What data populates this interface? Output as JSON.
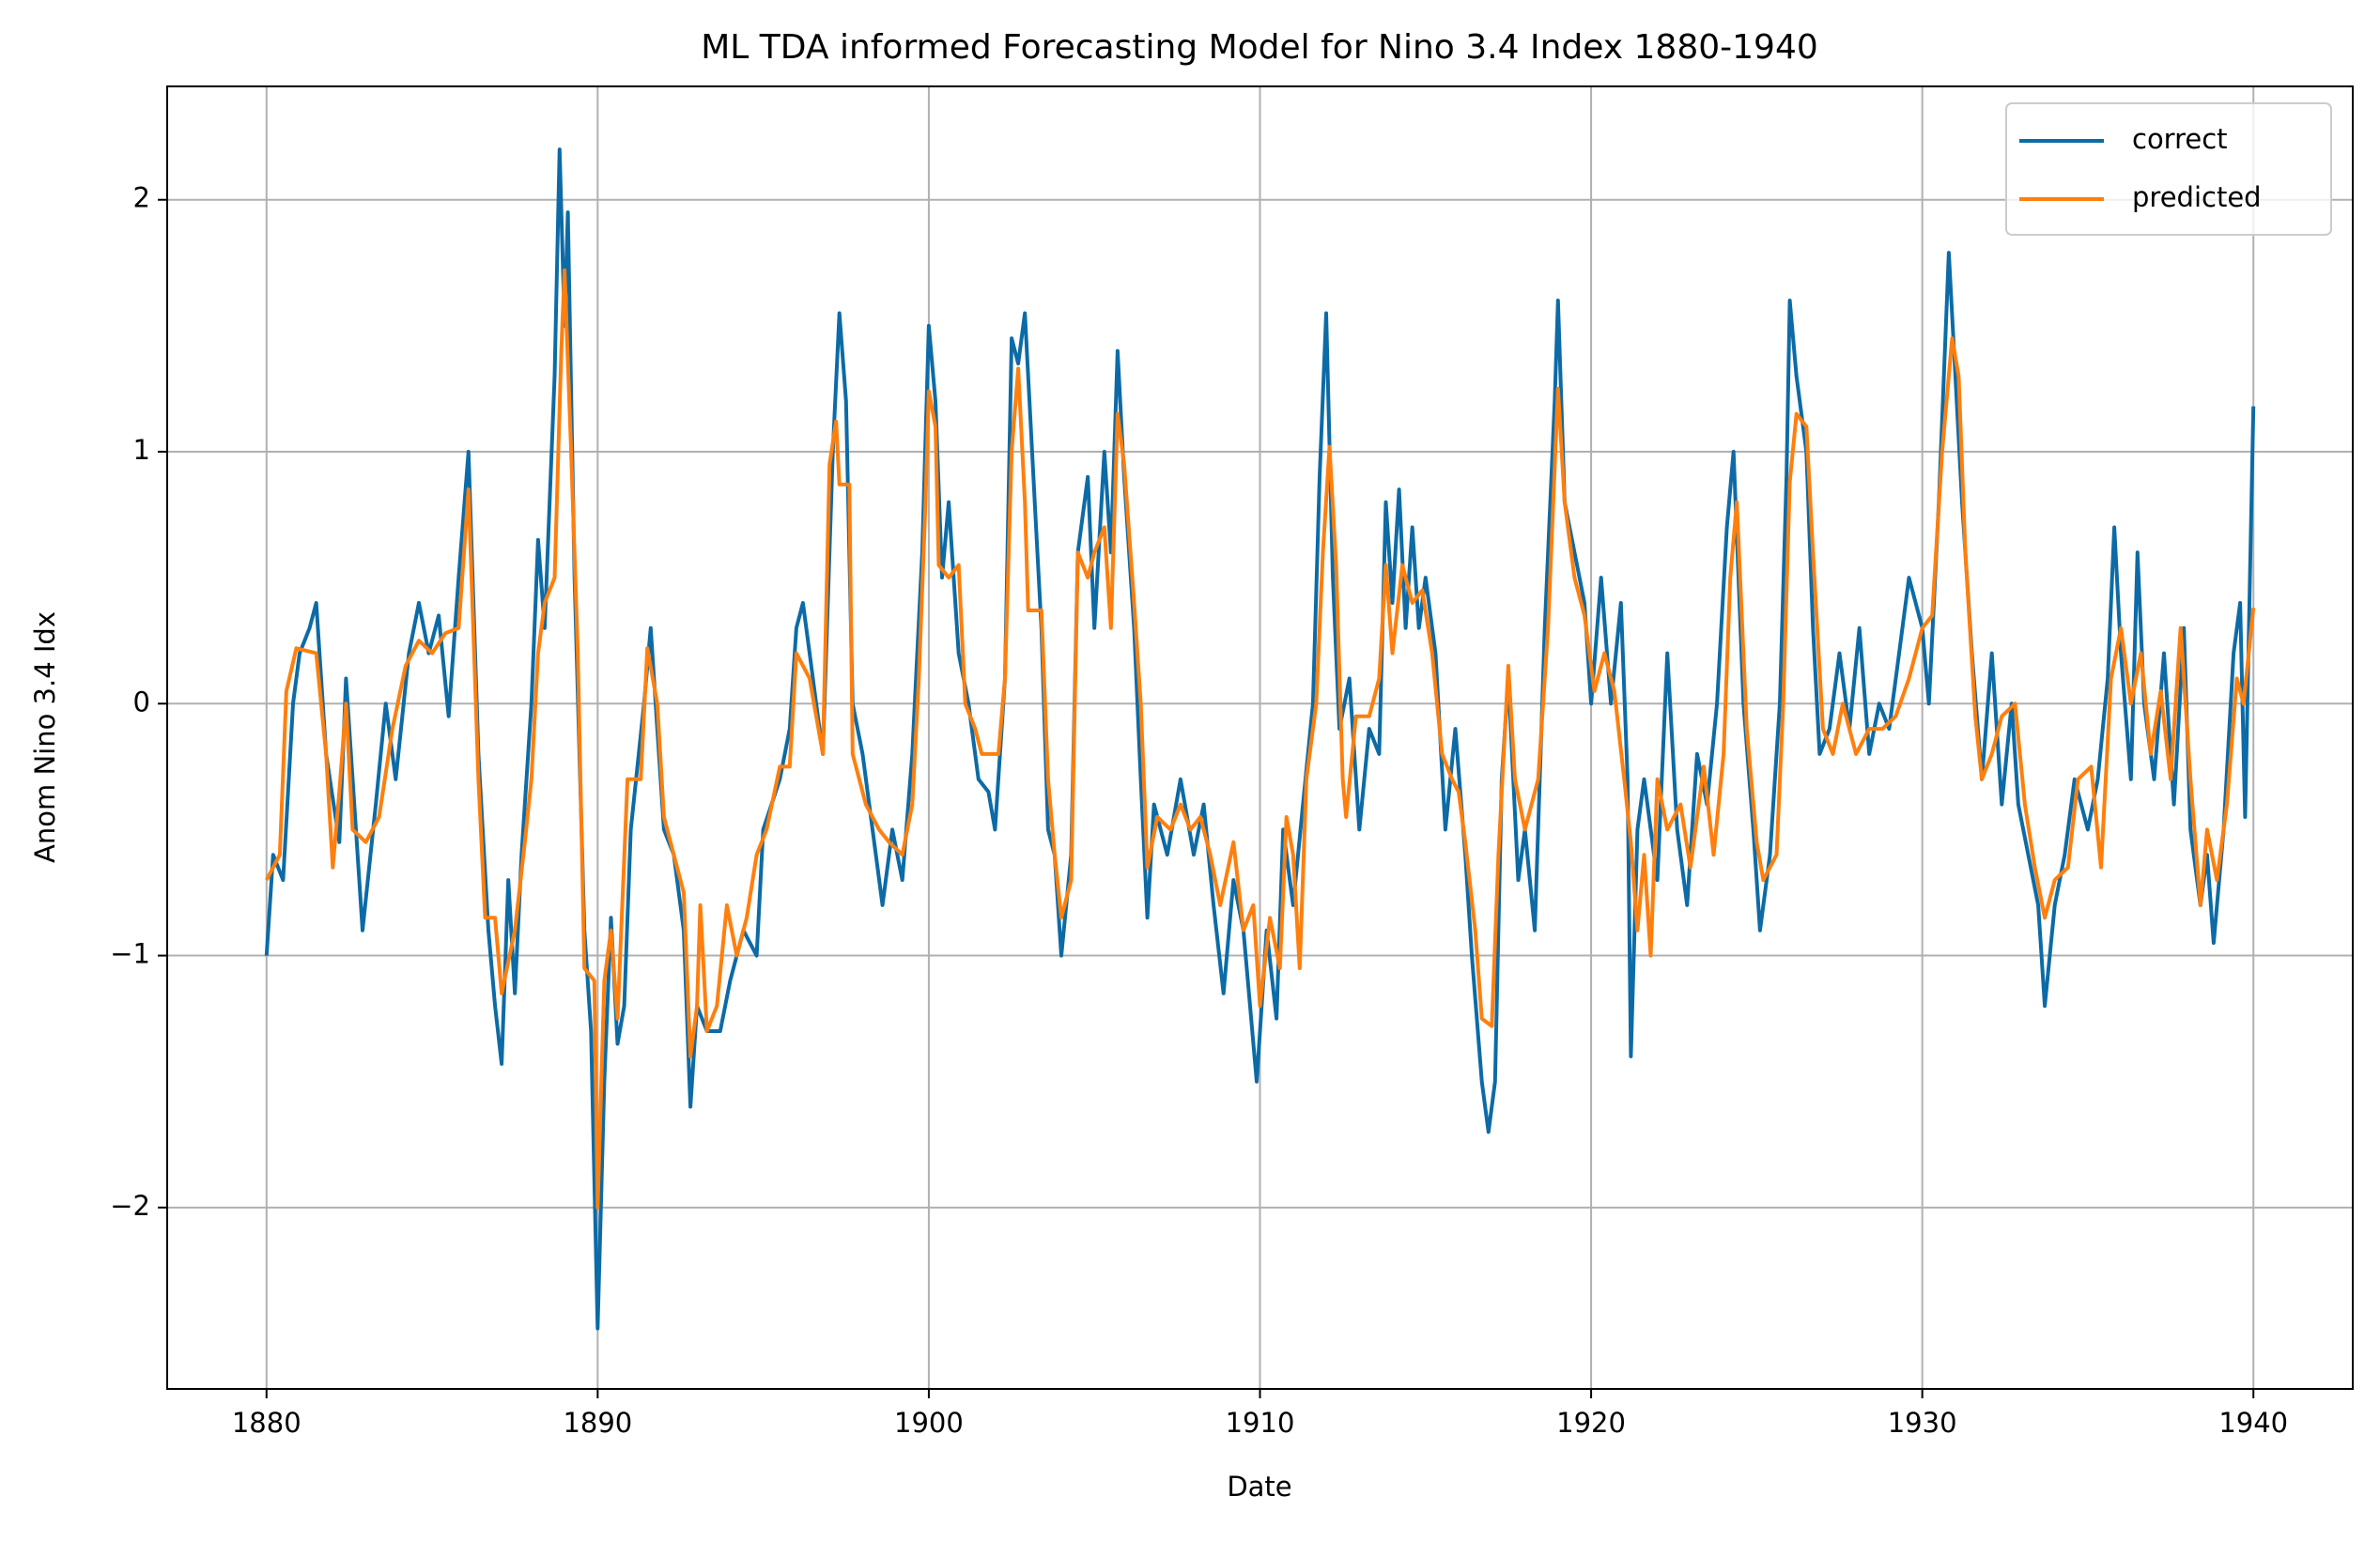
{
  "chart_data": {
    "type": "line",
    "title": "ML TDA informed Forecasting Model for Nino 3.4 Index 1880-1940",
    "x_label": "Date",
    "y_label": "Anom Nino 3.4 Idx",
    "xlim": [
      1877,
      1943
    ],
    "ylim": [
      -2.72,
      2.45
    ],
    "xticks": [
      1880,
      1890,
      1900,
      1910,
      1920,
      1930,
      1940
    ],
    "yticks": [
      {
        "value": -2,
        "label": "−2"
      },
      {
        "value": -1,
        "label": "−1"
      },
      0,
      1,
      2
    ],
    "grid": true,
    "legend": "upper right",
    "series": [
      {
        "name": "correct",
        "color": "#0c6ba6",
        "x": [
          1880,
          1880.2,
          1880.5,
          1880.8,
          1881,
          1881.3,
          1881.5,
          1881.8,
          1882.2,
          1882.4,
          1882.7,
          1882.9,
          1883.3,
          1883.6,
          1883.9,
          1884.3,
          1884.6,
          1884.9,
          1885.2,
          1885.5,
          1885.8,
          1886.1,
          1886.4,
          1886.7,
          1886.9,
          1887.1,
          1887.3,
          1887.5,
          1887.7,
          1888,
          1888.2,
          1888.4,
          1888.7,
          1888.85,
          1889,
          1889.1,
          1889.3,
          1889.6,
          1889.8,
          1890,
          1890.2,
          1890.4,
          1890.6,
          1890.8,
          1891,
          1891.4,
          1891.6,
          1891.8,
          1892,
          1892.3,
          1892.6,
          1892.8,
          1893,
          1893.3,
          1893.7,
          1894,
          1894.4,
          1894.8,
          1895,
          1895.5,
          1895.8,
          1896,
          1896.2,
          1896.4,
          1896.6,
          1896.8,
          1897.1,
          1897.3,
          1897.5,
          1897.7,
          1898,
          1898.3,
          1898.6,
          1898.9,
          1899.2,
          1899.5,
          1899.8,
          1900,
          1900.2,
          1900.4,
          1900.6,
          1900.9,
          1901.2,
          1901.5,
          1901.8,
          1902,
          1902.3,
          1902.5,
          1902.7,
          1902.9,
          1903.2,
          1903.4,
          1903.6,
          1903.8,
          1904,
          1904.3,
          1904.5,
          1904.8,
          1905,
          1905.3,
          1905.5,
          1905.7,
          1905.9,
          1906.2,
          1906.4,
          1906.6,
          1906.8,
          1907.2,
          1907.6,
          1908,
          1908.3,
          1908.6,
          1908.9,
          1909.2,
          1909.5,
          1909.9,
          1910.2,
          1910.5,
          1910.7,
          1911,
          1911.3,
          1911.6,
          1911.8,
          1912,
          1912.2,
          1912.4,
          1912.7,
          1913,
          1913.3,
          1913.6,
          1913.8,
          1914,
          1914.2,
          1914.4,
          1914.6,
          1914.8,
          1915,
          1915.3,
          1915.6,
          1915.9,
          1916.2,
          1916.4,
          1916.7,
          1916.9,
          1917.1,
          1917.3,
          1917.5,
          1917.8,
          1918,
          1918.3,
          1918.6,
          1918.9,
          1919,
          1919.2,
          1919.5,
          1919.8,
          1920,
          1920.3,
          1920.6,
          1920.9,
          1921.1,
          1921.2,
          1921.4,
          1921.6,
          1922,
          1922.3,
          1922.6,
          1922.9,
          1923.2,
          1923.5,
          1923.8,
          1924.1,
          1924.3,
          1924.6,
          1924.9,
          1925.1,
          1925.4,
          1925.7,
          1925.9,
          1926,
          1926.2,
          1926.5,
          1926.7,
          1926.9,
          1927.2,
          1927.5,
          1927.8,
          1928.1,
          1928.4,
          1928.7,
          1929,
          1929.3,
          1929.6,
          1930,
          1930.2,
          1930.5,
          1930.8,
          1931,
          1931.2,
          1931.5,
          1931.8,
          1932.1,
          1932.4,
          1932.7,
          1932.9,
          1933.2,
          1933.5,
          1933.7,
          1934,
          1934.3,
          1934.6,
          1935,
          1935.3,
          1935.6,
          1935.8,
          1936,
          1936.3,
          1936.5,
          1936.7,
          1937,
          1937.3,
          1937.6,
          1937.9,
          1938.1,
          1938.4,
          1938.6,
          1938.8,
          1939.1,
          1939.4,
          1939.6,
          1939.75,
          1940
        ],
        "values": [
          -1.0,
          -0.6,
          -0.7,
          0.0,
          0.2,
          0.3,
          0.4,
          -0.2,
          -0.55,
          0.1,
          -0.5,
          -0.9,
          -0.4,
          0.0,
          -0.3,
          0.2,
          0.4,
          0.2,
          0.35,
          -0.05,
          0.5,
          1.0,
          -0.2,
          -0.9,
          -1.2,
          -1.43,
          -0.7,
          -1.15,
          -0.6,
          0.0,
          0.65,
          0.3,
          1.3,
          2.2,
          1.5,
          1.95,
          0.5,
          -0.9,
          -1.3,
          -2.48,
          -1.5,
          -0.85,
          -1.35,
          -1.2,
          -0.5,
          0.0,
          0.3,
          -0.1,
          -0.5,
          -0.6,
          -0.9,
          -1.6,
          -1.2,
          -1.3,
          -1.3,
          -1.1,
          -0.9,
          -1.0,
          -0.5,
          -0.3,
          -0.1,
          0.3,
          0.4,
          0.2,
          0.0,
          -0.2,
          1.0,
          1.55,
          1.2,
          0.0,
          -0.2,
          -0.5,
          -0.8,
          -0.5,
          -0.7,
          -0.2,
          0.6,
          1.5,
          1.2,
          0.5,
          0.8,
          0.2,
          0.0,
          -0.3,
          -0.35,
          -0.5,
          0.1,
          1.45,
          1.35,
          1.55,
          0.8,
          0.3,
          -0.5,
          -0.6,
          -1.0,
          -0.6,
          0.6,
          0.9,
          0.3,
          1.0,
          0.6,
          1.4,
          0.9,
          0.3,
          -0.3,
          -0.85,
          -0.4,
          -0.6,
          -0.3,
          -0.6,
          -0.4,
          -0.8,
          -1.15,
          -0.7,
          -0.9,
          -1.5,
          -0.9,
          -1.25,
          -0.5,
          -0.8,
          -0.4,
          0.0,
          0.9,
          1.55,
          0.5,
          -0.1,
          0.1,
          -0.5,
          -0.1,
          -0.2,
          0.8,
          0.4,
          0.85,
          0.3,
          0.7,
          0.3,
          0.5,
          0.2,
          -0.5,
          -0.1,
          -0.6,
          -1.0,
          -1.5,
          -1.7,
          -1.5,
          -0.3,
          0.1,
          -0.7,
          -0.5,
          -0.9,
          0.3,
          1.2,
          1.6,
          0.8,
          0.6,
          0.4,
          0.0,
          0.5,
          0.0,
          0.4,
          -0.3,
          -1.4,
          -0.5,
          -0.3,
          -0.7,
          0.2,
          -0.5,
          -0.8,
          -0.2,
          -0.4,
          0.0,
          0.7,
          1.0,
          0.0,
          -0.5,
          -0.9,
          -0.6,
          0.0,
          0.9,
          1.6,
          1.3,
          1.0,
          0.3,
          -0.2,
          -0.1,
          0.2,
          -0.1,
          0.3,
          -0.2,
          0.0,
          -0.1,
          0.2,
          0.5,
          0.3,
          0.0,
          0.8,
          1.79,
          1.3,
          0.8,
          0.2,
          -0.3,
          0.2,
          -0.4,
          0.0,
          -0.4,
          -0.6,
          -0.8,
          -1.2,
          -0.8,
          -0.6,
          -0.3,
          -0.5,
          -0.3,
          0.1,
          0.7,
          0.2,
          -0.3,
          0.6,
          0.0,
          -0.3,
          0.2,
          -0.4,
          0.3,
          -0.5,
          -0.8,
          -0.6,
          -0.95,
          -0.5,
          0.2,
          0.4,
          -0.45,
          1.18
        ]
      },
      {
        "name": "predicted",
        "color": "#ff7f0e",
        "x": [
          1880,
          1880.4,
          1880.6,
          1880.9,
          1881.5,
          1881.8,
          1882,
          1882.2,
          1882.4,
          1882.6,
          1883,
          1883.4,
          1883.8,
          1884.2,
          1884.6,
          1885,
          1885.4,
          1885.8,
          1886.1,
          1886.4,
          1886.6,
          1886.9,
          1887.1,
          1887.5,
          1887.8,
          1888,
          1888.2,
          1888.4,
          1888.7,
          1888.9,
          1889,
          1889.2,
          1889.4,
          1889.6,
          1889.9,
          1890,
          1890.2,
          1890.4,
          1890.6,
          1890.9,
          1891.3,
          1891.5,
          1891.8,
          1892,
          1892.3,
          1892.6,
          1892.8,
          1893,
          1893.1,
          1893.3,
          1893.6,
          1893.9,
          1894.2,
          1894.5,
          1894.8,
          1895.1,
          1895.5,
          1895.8,
          1896,
          1896.4,
          1896.8,
          1897,
          1897.2,
          1897.3,
          1897.6,
          1897.7,
          1898.1,
          1898.5,
          1898.8,
          1899.2,
          1899.5,
          1899.7,
          1899.9,
          1900,
          1900.2,
          1900.3,
          1900.6,
          1900.9,
          1901.1,
          1901.4,
          1901.6,
          1902.1,
          1902.3,
          1902.5,
          1902.7,
          1902.9,
          1903,
          1903.4,
          1903.6,
          1903.8,
          1904,
          1904.3,
          1904.5,
          1904.8,
          1905,
          1905.3,
          1905.5,
          1905.7,
          1905.9,
          1906.2,
          1906.4,
          1906.6,
          1906.9,
          1907.3,
          1907.6,
          1907.9,
          1908.2,
          1908.5,
          1908.8,
          1909.2,
          1909.5,
          1909.8,
          1910,
          1910.3,
          1910.6,
          1910.8,
          1911,
          1911.2,
          1911.4,
          1911.7,
          1911.9,
          1912.1,
          1912.3,
          1912.5,
          1912.6,
          1912.9,
          1913.3,
          1913.6,
          1913.8,
          1914,
          1914.3,
          1914.6,
          1914.9,
          1915.2,
          1915.5,
          1915.8,
          1916,
          1916.2,
          1916.5,
          1916.7,
          1917,
          1917.2,
          1917.5,
          1917.7,
          1918,
          1918.4,
          1918.7,
          1919,
          1919.2,
          1919.5,
          1919.8,
          1920.1,
          1920.4,
          1920.7,
          1921,
          1921.2,
          1921.4,
          1921.6,
          1921.8,
          1922,
          1922.3,
          1922.7,
          1923,
          1923.4,
          1923.7,
          1924,
          1924.2,
          1924.4,
          1924.7,
          1925,
          1925.2,
          1925.6,
          1925.8,
          1926,
          1926.2,
          1926.5,
          1926.7,
          1927,
          1927.3,
          1927.6,
          1928,
          1928.4,
          1928.8,
          1929.2,
          1929.6,
          1930,
          1930.3,
          1930.6,
          1930.9,
          1931.1,
          1931.3,
          1931.6,
          1931.8,
          1932.1,
          1932.4,
          1932.8,
          1933.1,
          1933.4,
          1933.7,
          1934,
          1934.4,
          1934.7,
          1935.1,
          1935.4,
          1935.7,
          1936,
          1936.3,
          1936.6,
          1936.9,
          1937.2,
          1937.5,
          1937.8,
          1938.1,
          1938.4,
          1938.6,
          1938.9,
          1939.2,
          1939.5,
          1939.7,
          1940
        ],
        "values": [
          -0.7,
          -0.6,
          0.05,
          0.22,
          0.2,
          -0.2,
          -0.65,
          -0.35,
          0.0,
          -0.5,
          -0.55,
          -0.45,
          -0.1,
          0.15,
          0.25,
          0.2,
          0.28,
          0.3,
          0.85,
          -0.3,
          -0.85,
          -0.85,
          -1.15,
          -0.9,
          -0.55,
          -0.3,
          0.2,
          0.4,
          0.5,
          1.4,
          1.72,
          1.0,
          0.2,
          -1.05,
          -1.1,
          -2.0,
          -1.1,
          -0.9,
          -1.25,
          -0.3,
          -0.3,
          0.22,
          0.0,
          -0.45,
          -0.6,
          -0.75,
          -1.4,
          -1.2,
          -0.8,
          -1.3,
          -1.2,
          -0.8,
          -1.0,
          -0.85,
          -0.6,
          -0.5,
          -0.25,
          -0.25,
          0.2,
          0.1,
          -0.2,
          0.95,
          1.12,
          0.87,
          0.87,
          -0.2,
          -0.4,
          -0.5,
          -0.55,
          -0.6,
          -0.4,
          0.1,
          0.8,
          1.24,
          1.1,
          0.55,
          0.5,
          0.55,
          0.0,
          -0.1,
          -0.2,
          -0.2,
          0.1,
          1.0,
          1.33,
          0.8,
          0.37,
          0.37,
          -0.3,
          -0.6,
          -0.85,
          -0.7,
          0.6,
          0.5,
          0.6,
          0.7,
          0.3,
          1.15,
          0.95,
          0.4,
          0.0,
          -0.65,
          -0.45,
          -0.5,
          -0.4,
          -0.5,
          -0.45,
          -0.6,
          -0.8,
          -0.55,
          -0.9,
          -0.8,
          -1.2,
          -0.85,
          -1.05,
          -0.45,
          -0.6,
          -1.05,
          -0.3,
          0.0,
          0.6,
          1.02,
          0.55,
          -0.3,
          -0.45,
          -0.05,
          -0.05,
          0.1,
          0.55,
          0.2,
          0.55,
          0.4,
          0.45,
          0.2,
          -0.2,
          -0.3,
          -0.35,
          -0.55,
          -0.9,
          -1.25,
          -1.28,
          -0.6,
          0.15,
          -0.3,
          -0.5,
          -0.3,
          0.3,
          1.25,
          0.8,
          0.5,
          0.35,
          0.05,
          0.2,
          0.05,
          -0.3,
          -0.55,
          -0.9,
          -0.6,
          -1.0,
          -0.3,
          -0.5,
          -0.4,
          -0.65,
          -0.25,
          -0.6,
          -0.2,
          0.5,
          0.8,
          -0.1,
          -0.55,
          -0.7,
          -0.6,
          0.0,
          0.88,
          1.15,
          1.1,
          0.6,
          -0.1,
          -0.2,
          0.0,
          -0.2,
          -0.1,
          -0.1,
          -0.05,
          0.1,
          0.3,
          0.35,
          1.0,
          1.45,
          1.3,
          0.6,
          -0.05,
          -0.3,
          -0.2,
          -0.05,
          0.0,
          -0.4,
          -0.65,
          -0.85,
          -0.7,
          -0.65,
          -0.3,
          -0.25,
          -0.65,
          0.1,
          0.3,
          0.0,
          0.2,
          -0.2,
          0.05,
          -0.3,
          0.3,
          -0.3,
          -0.8,
          -0.5,
          -0.7,
          -0.4,
          0.1,
          0.0,
          0.38
        ]
      }
    ]
  }
}
